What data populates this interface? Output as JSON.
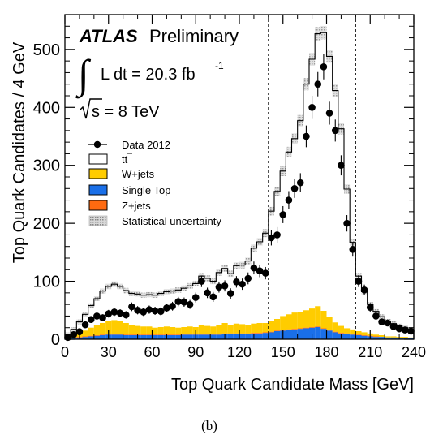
{
  "chart_data": {
    "type": "histogram",
    "experiment": "ATLAS",
    "experiment_tag": "Preliminary",
    "luminosity": {
      "prefix": "L dt = 20.3 fb",
      "exp": "-1"
    },
    "energy": {
      "prefix": "s = 8 TeV"
    },
    "xlabel": "Top Quark Candidate Mass [GeV]",
    "ylabel": "Top Quark Candidates / 4 GeV",
    "xlim": [
      0,
      240
    ],
    "ylim": [
      0,
      560
    ],
    "x_ticks": [
      "0",
      "30",
      "60",
      "90",
      "120",
      "150",
      "180",
      "210",
      "240"
    ],
    "y_ticks": [
      "0",
      "100",
      "200",
      "300",
      "400",
      "500"
    ],
    "bin_width": 4,
    "cut_lines": [
      140,
      200
    ],
    "legend": {
      "data": "Data 2012",
      "ttbar": "tt",
      "wjets": "W+jets",
      "singletop": "Single Top",
      "zjets": "Z+jets",
      "unc": "Statistical uncertainty"
    },
    "colors": {
      "wjets": "#ffcc00",
      "singletop": "#1a6fe8",
      "zjets": "#ff6a10",
      "data": "#000000"
    },
    "bin_low_edges": [
      0,
      4,
      8,
      12,
      16,
      20,
      24,
      28,
      32,
      36,
      40,
      44,
      48,
      52,
      56,
      60,
      64,
      68,
      72,
      76,
      80,
      84,
      88,
      92,
      96,
      100,
      104,
      108,
      112,
      116,
      120,
      124,
      128,
      132,
      136,
      140,
      144,
      148,
      152,
      156,
      160,
      164,
      168,
      172,
      176,
      180,
      184,
      188,
      192,
      196,
      200,
      204,
      208,
      212,
      216,
      220,
      224,
      228,
      232,
      236
    ],
    "series": [
      {
        "name": "Data 2012",
        "values": [
          3,
          8,
          13,
          25,
          34,
          40,
          37,
          44,
          47,
          45,
          42,
          56,
          50,
          47,
          51,
          49,
          48,
          54,
          57,
          65,
          64,
          60,
          72,
          100,
          80,
          73,
          90,
          92,
          79,
          99,
          95,
          105,
          123,
          118,
          114,
          175,
          180,
          215,
          240,
          260,
          270,
          350,
          400,
          440,
          470,
          390,
          360,
          300,
          200,
          155,
          100,
          85,
          55,
          40,
          30,
          28,
          22,
          18,
          16,
          14
        ]
      },
      {
        "name": "tt",
        "values": [
          6,
          12,
          20,
          28,
          38,
          45,
          55,
          60,
          62,
          60,
          56,
          55,
          55,
          54,
          55,
          56,
          58,
          60,
          62,
          65,
          67,
          70,
          75,
          85,
          82,
          78,
          90,
          94,
          88,
          100,
          102,
          110,
          130,
          140,
          155,
          190,
          220,
          250,
          280,
          300,
          330,
          390,
          430,
          470,
          480,
          450,
          400,
          340,
          240,
          150,
          95,
          70,
          50,
          40,
          32,
          26,
          22,
          19,
          16,
          14
        ]
      },
      {
        "name": "W+jets",
        "values": [
          1,
          3,
          6,
          10,
          14,
          18,
          20,
          22,
          24,
          22,
          20,
          16,
          15,
          14,
          14,
          12,
          13,
          14,
          13,
          12,
          12,
          13,
          12,
          15,
          14,
          13,
          16,
          18,
          15,
          17,
          16,
          15,
          16,
          17,
          16,
          18,
          20,
          24,
          26,
          28,
          28,
          30,
          32,
          35,
          30,
          22,
          16,
          12,
          9,
          8,
          6,
          5,
          4,
          3,
          3,
          2,
          2,
          2,
          2,
          1
        ]
      },
      {
        "name": "Single Top",
        "values": [
          1,
          2,
          3,
          4,
          5,
          6,
          7,
          8,
          8,
          8,
          7,
          7,
          7,
          7,
          7,
          7,
          7,
          7,
          7,
          7,
          8,
          8,
          8,
          8,
          8,
          8,
          8,
          9,
          9,
          9,
          9,
          9,
          10,
          10,
          11,
          12,
          14,
          15,
          16,
          17,
          18,
          19,
          20,
          21,
          18,
          15,
          12,
          10,
          9,
          8,
          7,
          6,
          5,
          4,
          4,
          3,
          3,
          2,
          2,
          2
        ]
      },
      {
        "name": "Z+jets",
        "values": [
          0,
          0,
          1,
          1,
          1,
          1,
          1,
          1,
          1,
          1,
          1,
          1,
          1,
          1,
          1,
          1,
          1,
          1,
          1,
          1,
          1,
          1,
          1,
          1,
          1,
          1,
          1,
          1,
          1,
          1,
          1,
          1,
          1,
          1,
          1,
          1,
          1,
          1,
          1,
          1,
          1,
          1,
          1,
          1,
          1,
          1,
          1,
          1,
          1,
          1,
          1,
          1,
          1,
          1,
          0,
          0,
          0,
          0,
          0,
          0
        ]
      }
    ]
  },
  "caption": "(b)"
}
